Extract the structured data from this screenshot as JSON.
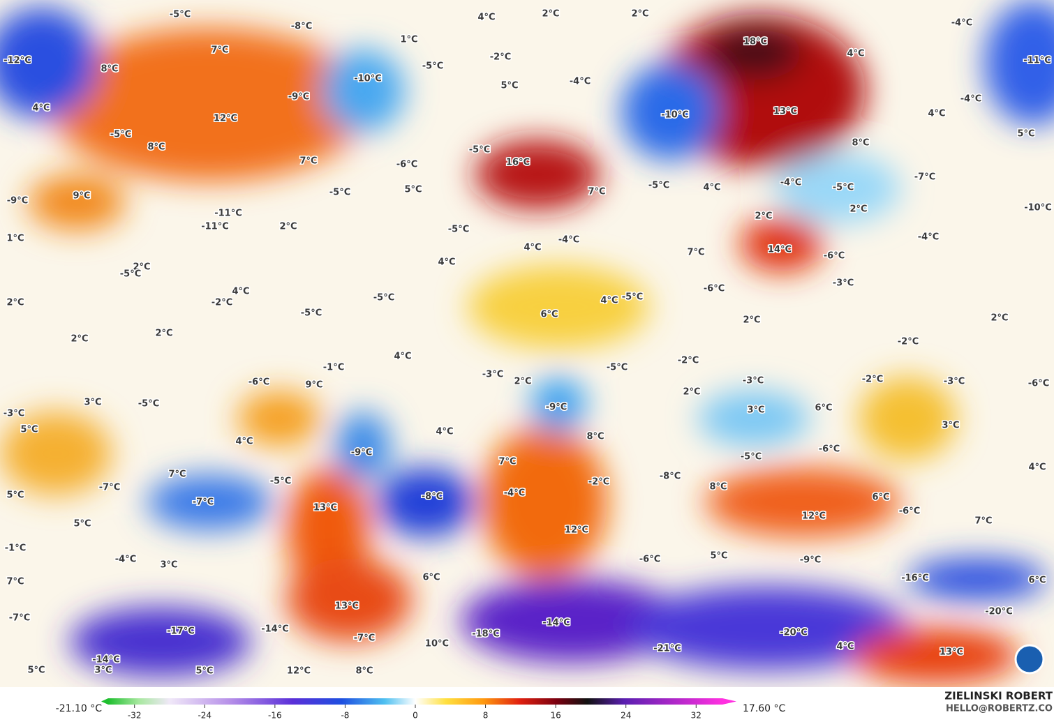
{
  "map": {
    "labels": [
      "-5°C",
      "-8°C",
      "1°C",
      "4°C",
      "2°C",
      "2°C",
      "18°C",
      "-4°C",
      "-12°C",
      "7°C",
      "8°C",
      "-10°C",
      "-5°C",
      "-2°C",
      "4°C",
      "-11°C",
      "5°C",
      "-4°C",
      "-9°C",
      "-4°C",
      "4°C",
      "12°C",
      "-10°C",
      "13°C",
      "4°C",
      "5°C",
      "-5°C",
      "8°C",
      "8°C",
      "-5°C",
      "7°C",
      "-6°C",
      "16°C",
      "-7°C",
      "-9°C",
      "9°C",
      "-5°C",
      "5°C",
      "-5°C",
      "4°C",
      "-4°C",
      "-5°C",
      "-10°C",
      "-11°C",
      "-11°C",
      "7°C",
      "2°C",
      "2°C",
      "2°C",
      "-5°C",
      "1°C",
      "-4°C",
      "4°C",
      "7°C",
      "14°C",
      "-6°C",
      "-4°C",
      "4°C",
      "2°C",
      "-5°C",
      "-3°C",
      "-6°C",
      "2°C",
      "4°C",
      "-2°C",
      "-5°C",
      "-5°C",
      "4°C",
      "-5°C",
      "6°C",
      "2°C",
      "2°C",
      "2°C",
      "2°C",
      "-2°C",
      "4°C",
      "-1°C",
      "-2°C",
      "-5°C",
      "-3°C",
      "-6°C",
      "9°C",
      "2°C",
      "-3°C",
      "-2°C",
      "-3°C",
      "-6°C",
      "2°C",
      "-5°C",
      "3°C",
      "-9°C",
      "3°C",
      "6°C",
      "-3°C",
      "5°C",
      "4°C",
      "3°C",
      "4°C",
      "8°C",
      "-9°C",
      "-5°C",
      "-6°C",
      "7°C",
      "4°C",
      "7°C",
      "-5°C",
      "-2°C",
      "-8°C",
      "8°C",
      "-7°C",
      "5°C",
      "-7°C",
      "-8°C",
      "-4°C",
      "6°C",
      "13°C",
      "-6°C",
      "12°C",
      "5°C",
      "12°C",
      "7°C",
      "-1°C",
      "5°C",
      "-9°C",
      "-4°C",
      "3°C",
      "-6°C",
      "-16°C",
      "7°C",
      "6°C",
      "6°C",
      "13°C",
      "-7°C",
      "-20°C",
      "-14°C",
      "-17°C",
      "-14°C",
      "-20°C",
      "-7°C",
      "-18°C",
      "10°C",
      "-21°C",
      "4°C",
      "13°C",
      "-14°C",
      "5°C",
      "3°C",
      "5°C",
      "12°C",
      "8°C"
    ]
  },
  "colorbar": {
    "min_label": "-21.10 °C",
    "max_label": "17.60 °C",
    "lim": [
      -35,
      35
    ],
    "ticks": [
      -32,
      -24,
      -16,
      -8,
      0,
      8,
      16,
      24,
      32
    ]
  },
  "credit": {
    "author": "ZIELINSKI ROBERT",
    "email": "HELLO@ROBERTZ.CO"
  }
}
